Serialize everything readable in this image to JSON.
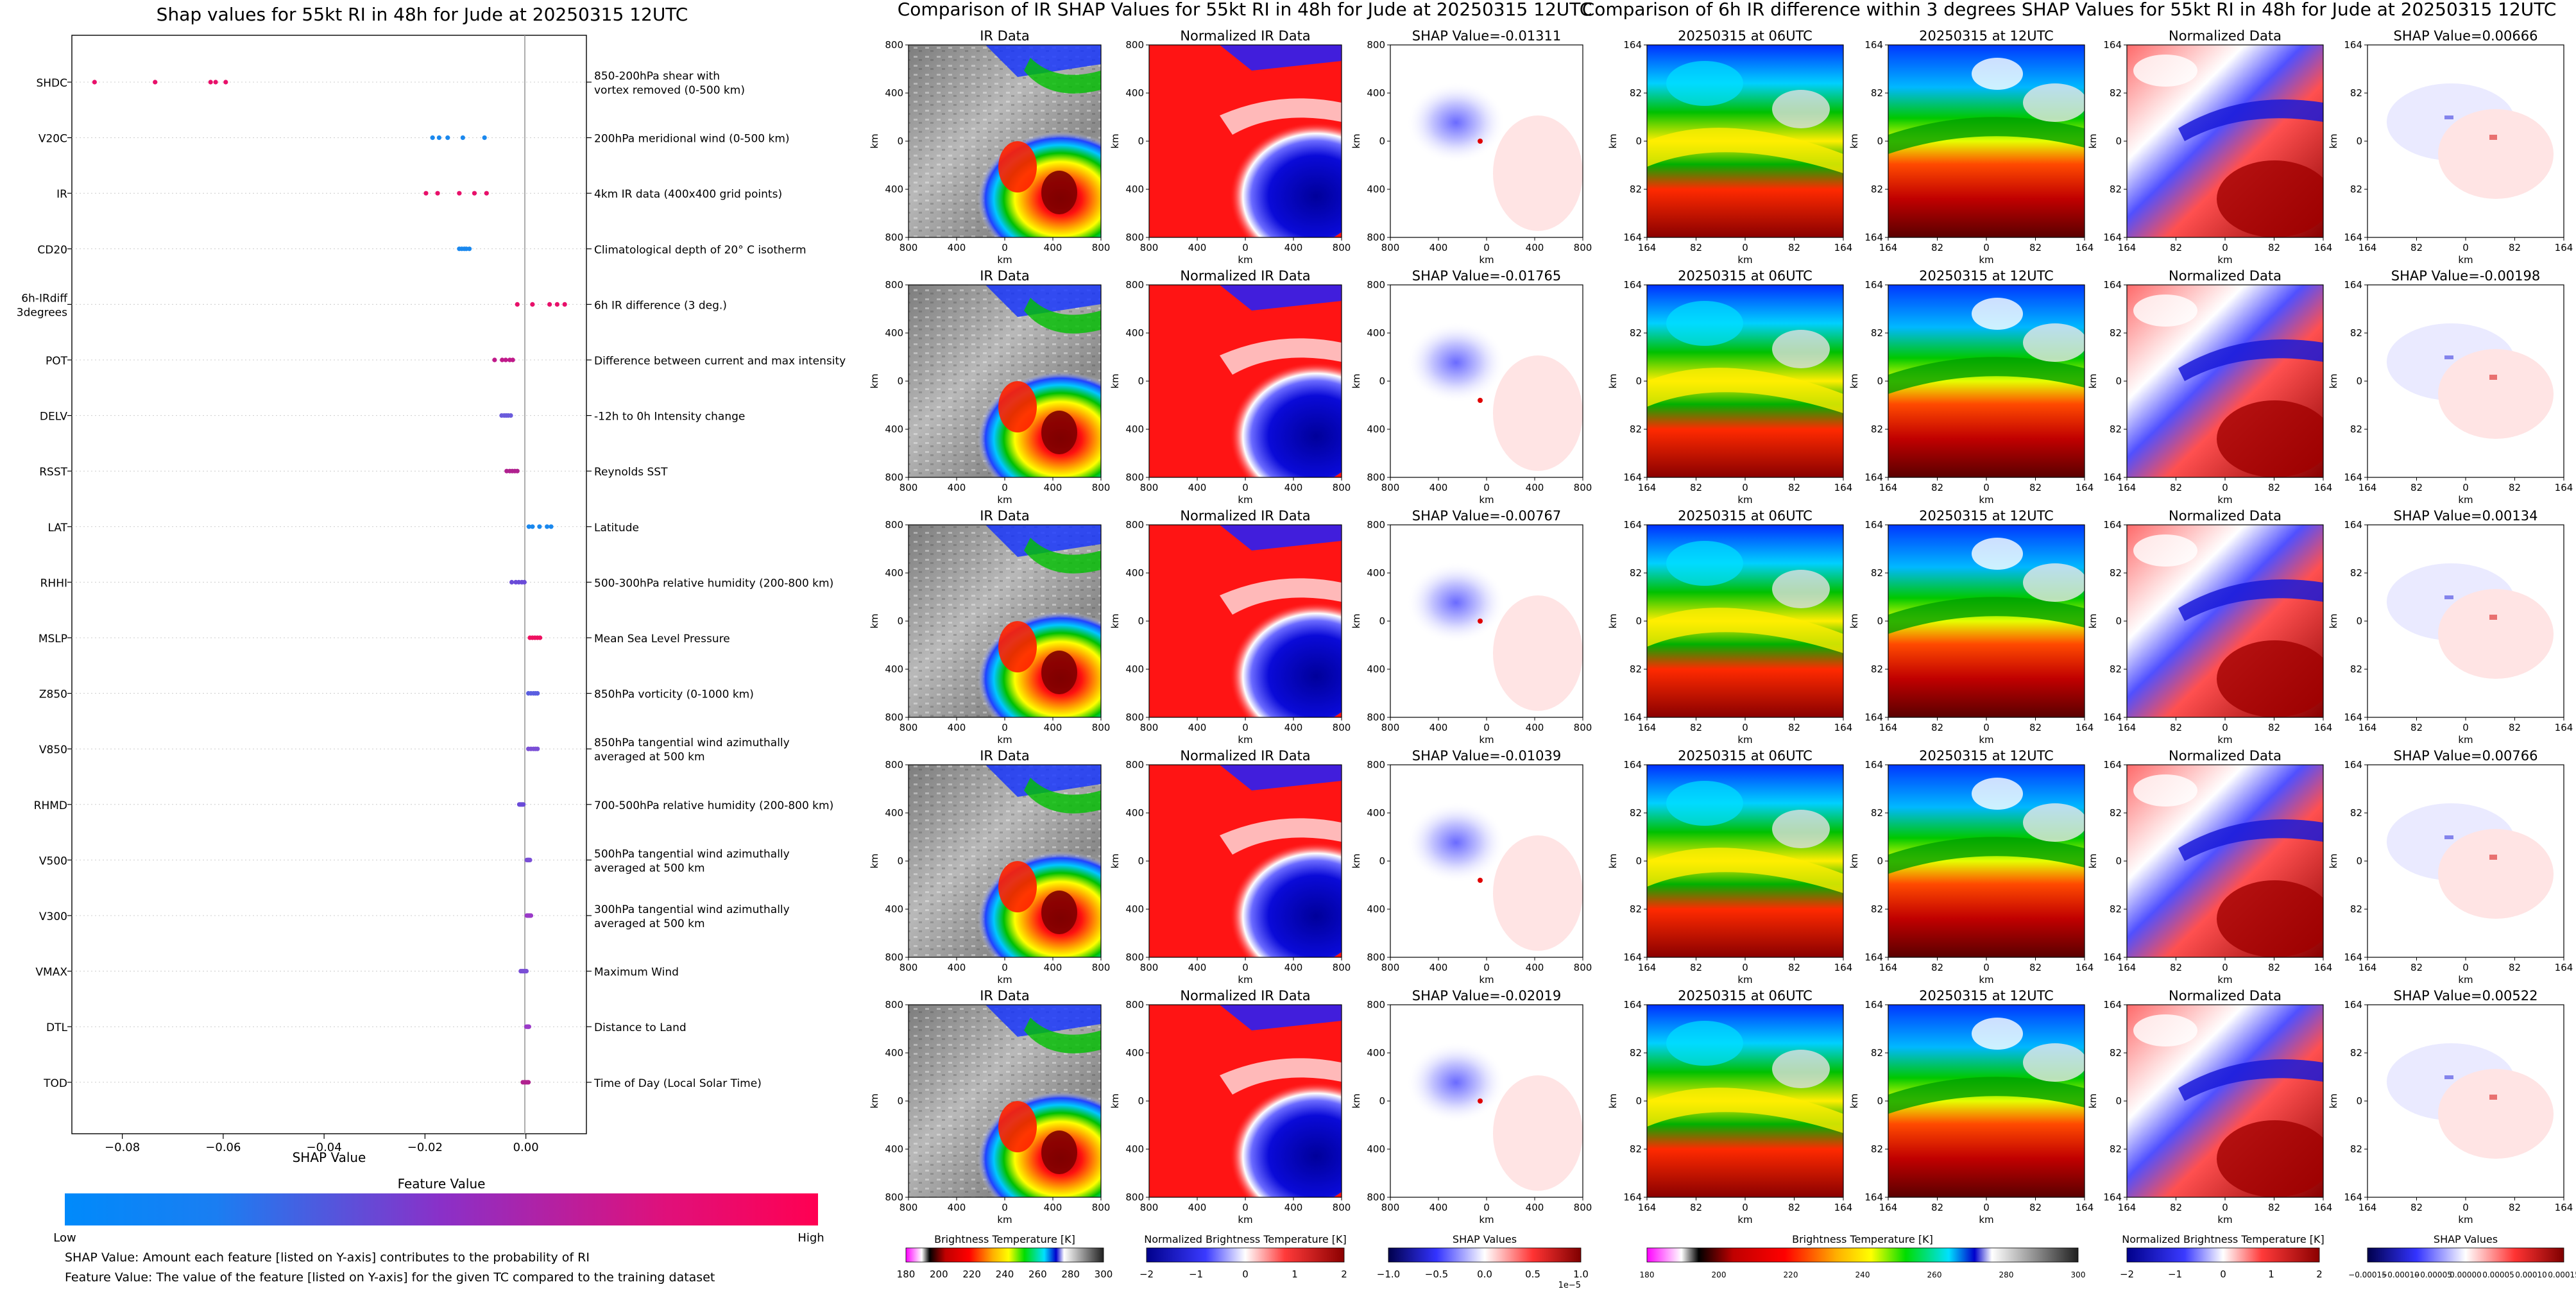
{
  "beeswarm": {
    "title": "Shap values for 55kt RI in 48h for Jude at 20250315 12UTC",
    "xlabel": "SHAP Value",
    "xticks": [
      "−0.08",
      "−0.06",
      "−0.04",
      "−0.02",
      "0.00"
    ],
    "colorbar_title": "Feature Value",
    "colorbar_low": "Low",
    "colorbar_high": "High",
    "colorbar_colors": [
      "#008afb",
      "#7c3fcf",
      "#ff0052"
    ],
    "note1": "SHAP Value: Amount each feature [listed on Y-axis] contributes to the probability of RI",
    "note2": "Feature Value: The value of the feature [listed on Y-axis] for the given TC compared to the training dataset"
  },
  "chart_data": [
    {
      "type": "scatter",
      "title": "Shap values for 55kt RI in 48h for Jude at 20250315 12UTC",
      "xlabel": "SHAP Value",
      "xlim": [
        -0.09,
        0.012
      ],
      "features": [
        {
          "code": "SHDC",
          "desc": "850-200hPa shear with\nvortex removed (0-500 km)",
          "values": [
            -0.0855,
            -0.0735,
            -0.0625,
            -0.0615,
            -0.0595
          ],
          "color": "#e8106a"
        },
        {
          "code": "V20C",
          "desc": "200hPa meridional wind (0-500 km)",
          "values": [
            -0.0185,
            -0.0172,
            -0.0155,
            -0.0125,
            -0.0082
          ],
          "color": "#1a88ee"
        },
        {
          "code": "IR",
          "desc": "4km IR data (400x400 grid points)",
          "values": [
            -0.0198,
            -0.0175,
            -0.0132,
            -0.0102,
            -0.0078
          ],
          "color": "#e8106a"
        },
        {
          "code": "CD20",
          "desc": "Climatological depth of 20° C isotherm",
          "values": [
            -0.0132,
            -0.0127,
            -0.0122,
            -0.0118,
            -0.0112
          ],
          "color": "#1a88ee"
        },
        {
          "code": "6h-IRdiff\n3degrees",
          "desc": "6h IR difference (3 deg.)",
          "values": [
            -0.0017,
            0.0013,
            0.0047,
            0.0062,
            0.0077
          ],
          "color": "#e8106a"
        },
        {
          "code": "POT",
          "desc": "Difference between current and max intensity",
          "values": [
            -0.0062,
            -0.0047,
            -0.004,
            -0.0032,
            -0.0026
          ],
          "color": "#c01a8a"
        },
        {
          "code": "DELV",
          "desc": "-12h to 0h Intensity change",
          "values": [
            -0.0048,
            -0.0043,
            -0.0039,
            -0.0035,
            -0.003
          ],
          "color": "#6b5cdc"
        },
        {
          "code": "RSST",
          "desc": "Reynolds SST",
          "values": [
            -0.0038,
            -0.0032,
            -0.0027,
            -0.0022,
            -0.0017
          ],
          "color": "#b0218f"
        },
        {
          "code": "LAT",
          "desc": "Latitude",
          "values": [
            0.0006,
            0.0013,
            0.0027,
            0.0042,
            0.005
          ],
          "color": "#1a88ee"
        },
        {
          "code": "RHHI",
          "desc": "500-300hPa relative humidity (200-800 km)",
          "values": [
            -0.0028,
            -0.002,
            -0.0014,
            -0.0008,
            -0.0003
          ],
          "color": "#6a4bd8"
        },
        {
          "code": "MSLP",
          "desc": "Mean Sea Level Pressure",
          "values": [
            0.0008,
            0.0013,
            0.0018,
            0.0023,
            0.0028
          ],
          "color": "#ee1060"
        },
        {
          "code": "Z850",
          "desc": "850hPa vorticity (0-1000 km)",
          "values": [
            0.0005,
            0.001,
            0.0015,
            0.0019,
            0.0023
          ],
          "color": "#5a5ee0"
        },
        {
          "code": "V850",
          "desc": "850hPa tangential wind azimuthally\naveraged at 500 km",
          "values": [
            0.0005,
            0.001,
            0.0015,
            0.0019,
            0.0023
          ],
          "color": "#7a4fd6"
        },
        {
          "code": "RHMD",
          "desc": "700-500hPa relative humidity (200-800 km)",
          "values": [
            -0.0013,
            -0.0011,
            -0.0009,
            -0.0007,
            -0.0005
          ],
          "color": "#6a4bd8"
        },
        {
          "code": "V500",
          "desc": "500hPa tangential wind azimuthally\naveraged at 500 km",
          "values": [
            0.0002,
            0.0004,
            0.0005,
            0.0006,
            0.0008
          ],
          "color": "#7a4fd6"
        },
        {
          "code": "V300",
          "desc": "300hPa tangential wind azimuthally\naveraged at 500 km",
          "values": [
            0.0002,
            0.0004,
            0.0006,
            0.0008,
            0.001
          ],
          "color": "#9a3ac8"
        },
        {
          "code": "VMAX",
          "desc": "Maximum Wind",
          "values": [
            -0.001,
            -0.0007,
            -0.0004,
            -0.0002,
            0.0001
          ],
          "color": "#7a4fd6"
        },
        {
          "code": "DTL",
          "desc": "Distance to Land",
          "values": [
            0.0001,
            0.0003,
            0.0004,
            0.0005,
            0.0006
          ],
          "color": "#9a3ac8"
        },
        {
          "code": "TOD",
          "desc": "Time of Day (Local Solar Time)",
          "values": [
            -0.0006,
            -0.0003,
            0.0,
            0.0003,
            0.0005
          ],
          "color": "#b0218f"
        }
      ]
    },
    {
      "type": "heatmap",
      "title": "Comparison of IR SHAP Values for 55kt RI in 48h for Jude at 20250315 12UTC",
      "panels": [
        "IR Data",
        "Normalized IR Data",
        "SHAP Value"
      ],
      "shap_values": [
        "-0.01311",
        "-0.01765",
        "-0.00767",
        "-0.01039",
        "-0.02019"
      ],
      "xlabel": "km",
      "ylabel": "km",
      "ticks": [
        "800",
        "400",
        "0",
        "400",
        "800"
      ]
    },
    {
      "type": "heatmap",
      "title": "Comparison of 6h IR difference within 3 degrees SHAP Values for 55kt RI in 48h for Jude at 20250315 12UTC",
      "panels": [
        "20250315 at 06UTC",
        "20250315 at 12UTC",
        "Normalized Data",
        "SHAP Value"
      ],
      "shap_values": [
        "0.00666",
        "-0.00198",
        "0.00134",
        "0.00766",
        "0.00522"
      ],
      "xlabel": "km",
      "ylabel": "km",
      "ticks": [
        "164",
        "82",
        "0",
        "82",
        "164"
      ]
    }
  ],
  "ir_section": {
    "title": "Comparison of IR SHAP Values for 55kt RI in 48h for Jude at 20250315 12UTC",
    "panel_ir": "IR Data",
    "panel_norm": "Normalized IR Data",
    "panel_shap_prefix": "SHAP Value=",
    "axis_unit": "km",
    "ticks": [
      "800",
      "400",
      "0",
      "400",
      "800"
    ],
    "colorbars": [
      {
        "label": "Brightness Temperature [K]",
        "ticks": [
          "180",
          "200",
          "220",
          "240",
          "260",
          "280",
          "300"
        ]
      },
      {
        "label": "Normalized Brightness Temperature [K]",
        "ticks": [
          "−2",
          "−1",
          "0",
          "1",
          "2"
        ]
      },
      {
        "label": "SHAP Values",
        "ticks": [
          "−1.0",
          "−0.5",
          "0.0",
          "0.5",
          "1.0"
        ],
        "exponent": "1e−5"
      }
    ]
  },
  "diff_section": {
    "title": "Comparison of 6h IR difference within 3 degrees SHAP Values for 55kt RI in 48h for Jude at 20250315 12UTC",
    "panel_t1": "20250315 at 06UTC",
    "panel_t2": "20250315 at 12UTC",
    "panel_norm": "Normalized Data",
    "panel_shap_prefix": "SHAP Value=",
    "axis_unit": "km",
    "ticks": [
      "164",
      "82",
      "0",
      "82",
      "164"
    ],
    "colorbars": [
      {
        "label": "Brightness Temperature [K]",
        "ticks": [
          "180",
          "200",
          "220",
          "240",
          "260",
          "280",
          "300"
        ]
      },
      {
        "label": "Normalized Brightness Temperature [K]",
        "ticks": [
          "−2",
          "−1",
          "0",
          "1",
          "2"
        ]
      },
      {
        "label": "SHAP Values",
        "ticks": [
          "−0.00015",
          "−0.00010",
          "−0.00005",
          "0.00000",
          "0.00005",
          "0.00010",
          "0.00015"
        ]
      }
    ]
  }
}
